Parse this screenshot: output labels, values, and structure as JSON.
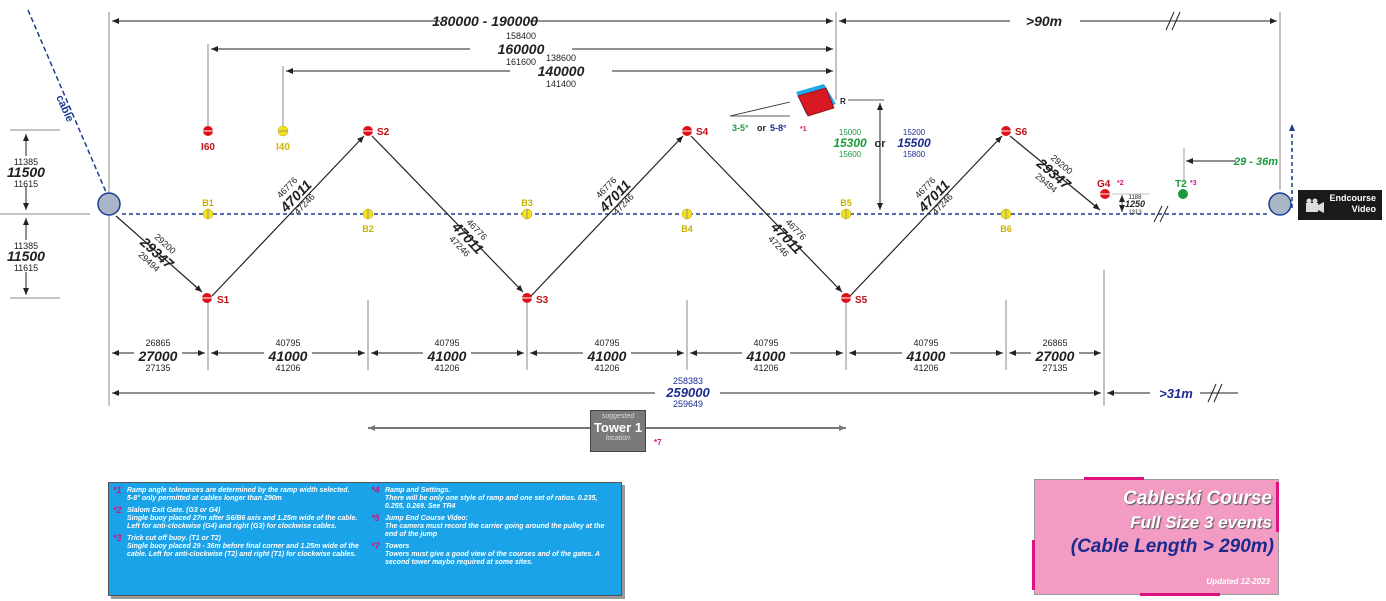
{
  "dims": {
    "top_total": "180000 - 190000",
    "top_right": ">90m",
    "d160_over": "158400",
    "d160": "160000",
    "d160_under": "161600",
    "d140_over": "138600",
    "d140": "140000",
    "d140_under": "141400",
    "y_top_over": "11385",
    "y_top": "11500",
    "y_top_under": "11615",
    "y_bot_over": "11385",
    "y_bot": "11500",
    "y_bot_under": "11615",
    "ramp_green_over": "15000",
    "ramp_green": "15300",
    "ramp_green_under": "15600",
    "ramp_or": "or",
    "ramp_blue_over": "15200",
    "ramp_blue": "15500",
    "ramp_blue_under": "15800",
    "diag_short_over": "29200",
    "diag_short": "29347",
    "diag_short_under": "29494",
    "diag_over": "46776",
    "diag": "47011",
    "diag_under": "47246",
    "seg_end_over": "26865",
    "seg_end": "27000",
    "seg_end_under": "27135",
    "seg_over": "40795",
    "seg": "41000",
    "seg_under": "41206",
    "total_over": "258383",
    "total": "259000",
    "total_under": "259649",
    "right_bottom": ">31m",
    "t2_range": "29 - 36m",
    "g4_dim_over": "1188",
    "g4_dim": "1250",
    "g4_dim_under": "1313"
  },
  "labels": {
    "cable": "cable",
    "ramp_angle_green": "3-5°",
    "ramp_angle_or": "or",
    "ramp_angle_blue": "5-8°",
    "ramp_note": "*1",
    "ramp_r": "R",
    "i60": "I60",
    "i40": "I40",
    "s1": "S1",
    "s2": "S2",
    "s3": "S3",
    "s4": "S4",
    "s5": "S5",
    "s6": "S6",
    "b1": "B1",
    "b2": "B2",
    "b3": "B3",
    "b4": "B4",
    "b5": "B5",
    "b6": "B6",
    "g4": "G4",
    "g4_note": "*2",
    "t2": "T2",
    "t2_note": "*3"
  },
  "tower": {
    "suggested": "suggested",
    "name": "Tower 1",
    "location": "location",
    "note": "*7"
  },
  "endcourse": {
    "line1": "Endcourse",
    "line2": "Video"
  },
  "legend": [
    {
      "num": "*1",
      "head": "Ramp angle tolerances are determined by the ramp width selected.",
      "body": "5-8° only permitted at cables longer than 290m"
    },
    {
      "num": "*2",
      "head": "Slalom Exit Gate. (G3 or G4)",
      "body": "Single buoy placed 27m after S6/B6 axis and 1.25m wide of the cable. Left for anti-clockwise (G4) and right (G3) for clockwise cables."
    },
    {
      "num": "*3",
      "head": "Trick cut off buoy. (T1 or T2)",
      "body": "Single buoy placed 29 - 36m before final corner and 1.25m wide of the cable. Left for anti-clockwise (T2) and right (T1) for clockwise cables."
    },
    {
      "num": "*4",
      "head": "Ramp and Settings.",
      "body": "There will be only one style of ramp and one set of ratios. 0.235, 0.255, 0.269. See TR4"
    },
    {
      "num": "*5",
      "head": "Jump End Course Video:",
      "body": "The camera must record the carrier going around the pulley at the end of the jump"
    },
    {
      "num": "*7",
      "head": "Towers",
      "body": "Towers must give a good view of the courses and of the gates. A second tower maybo required at some sites."
    }
  ],
  "title": {
    "line1": "Cableski Course",
    "line2": "Full Size 3  events",
    "line3": "(Cable Length > 290m)",
    "updated": "Updated 12-2023"
  },
  "colors": {
    "cable": "#1f3c96",
    "buoy_red": "#e0101a",
    "buoy_yellow": "#f5e020",
    "green": "#1a9a3a",
    "blue_text": "#1b2a8e",
    "magenta": "#d6127e",
    "legend_bg": "#1aa3e8",
    "title_bg": "#f29cc3",
    "pulley": "#a9b6c6"
  },
  "icons": [
    "camera-icon"
  ]
}
